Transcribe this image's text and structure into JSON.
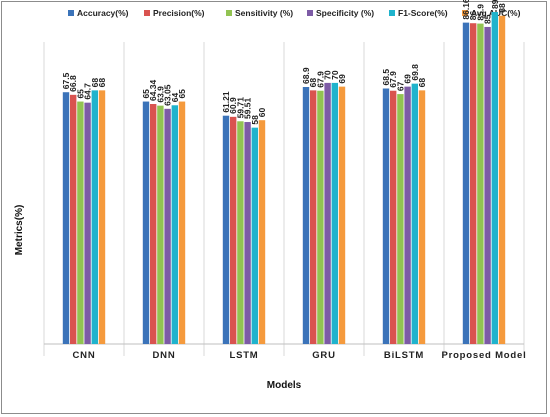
{
  "chart_data": {
    "type": "bar",
    "title": "",
    "xlabel": "Models",
    "ylabel": "Metrics(%)",
    "ylim": [
      0,
      100
    ],
    "grid": "vertical separators between categories",
    "legend_position": "top",
    "categories": [
      "CNN",
      "DNN",
      "LSTM",
      "GRU",
      "BiLSTM",
      "Proposed Model"
    ],
    "series": [
      {
        "name": "Accuracy(%)",
        "color": "#3b73b9",
        "values": [
          67.5,
          65,
          61.21,
          68.9,
          68.5,
          86.16
        ],
        "labels": [
          "67.5",
          "65",
          "61.21",
          "68.9",
          "68.5",
          "86.16"
        ]
      },
      {
        "name": "Precision(%)",
        "color": "#d9534f",
        "values": [
          66.8,
          64.34,
          60.9,
          68,
          67.9,
          86
        ],
        "labels": [
          "66.8",
          "64.34",
          "60.9",
          "68",
          "67.9",
          "86"
        ]
      },
      {
        "name": "Sensitivity (%)",
        "color": "#92c352",
        "values": [
          65,
          63.9,
          59.71,
          67.9,
          67,
          85.9
        ],
        "labels": [
          "65",
          "63.9",
          "59.71",
          "67.9",
          "67",
          "85.9"
        ]
      },
      {
        "name": "Specificity (%)",
        "color": "#7d5ba6",
        "values": [
          64.7,
          63.05,
          59.51,
          70,
          69,
          85
        ],
        "labels": [
          "64.7",
          "63.05",
          "59.51",
          "70",
          "69",
          "85"
        ]
      },
      {
        "name": "F1-Score(%)",
        "color": "#1fb3cc",
        "values": [
          68,
          64,
          58,
          70,
          69.8,
          89
        ],
        "labels": [
          "68",
          "64",
          "58",
          "70",
          "69.8",
          "89"
        ]
      },
      {
        "name": "Avg AUC(%)",
        "color": "#f59a3c",
        "values": [
          68,
          65,
          60,
          69,
          68,
          88
        ],
        "labels": [
          "68",
          "65",
          "60",
          "69",
          "68",
          "88"
        ]
      }
    ]
  }
}
